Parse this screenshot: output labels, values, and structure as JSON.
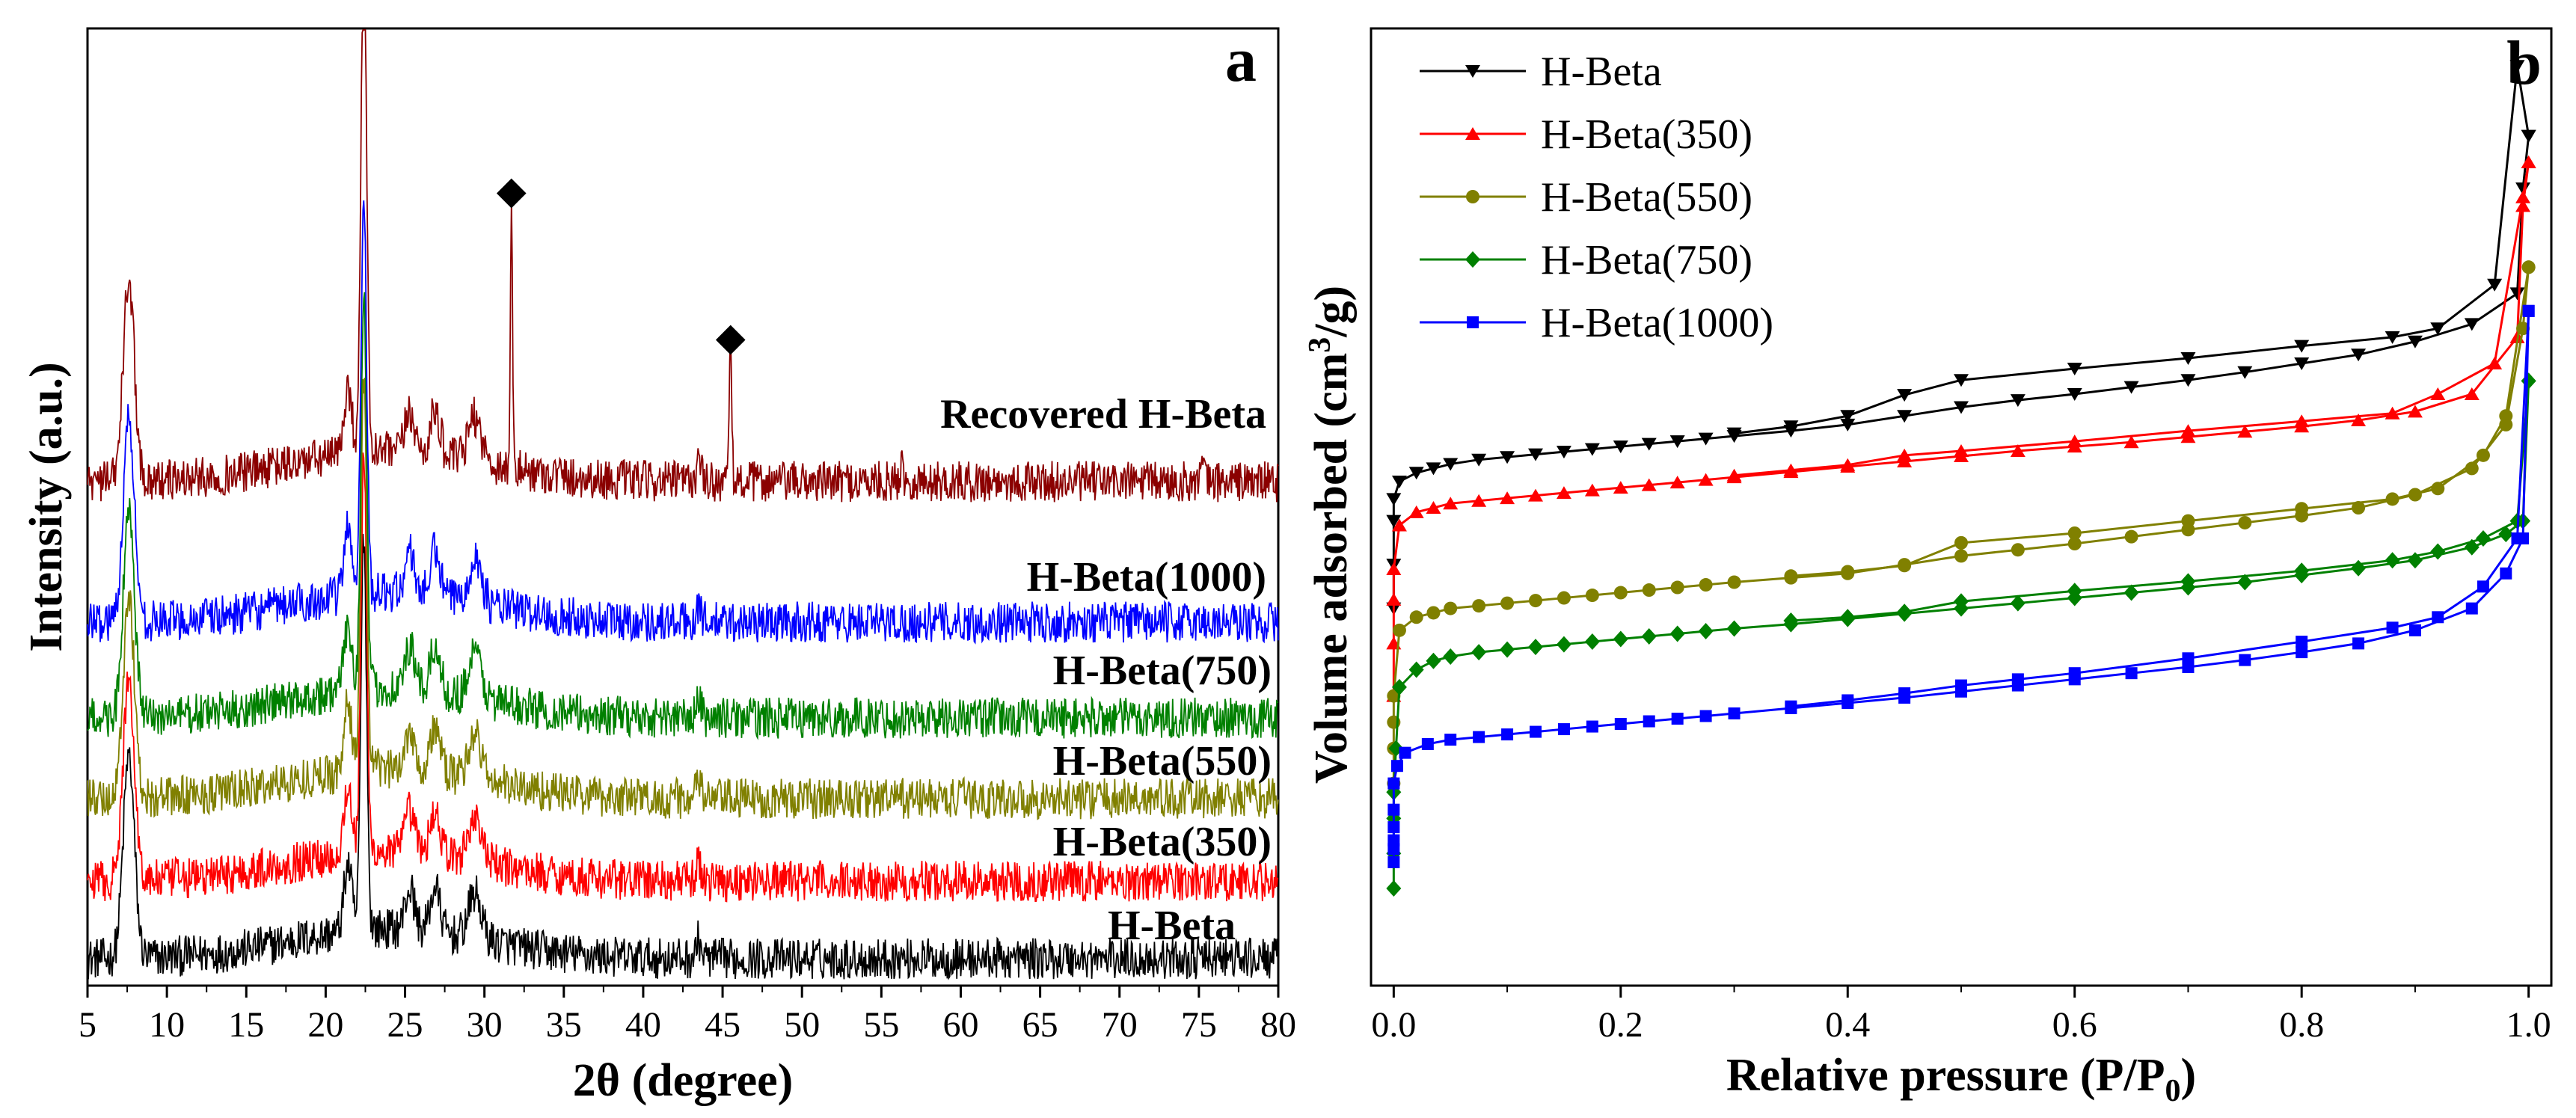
{
  "figure": {
    "panel_a_letter": "a",
    "panel_b_letter": "b"
  },
  "chart_data": [
    {
      "type": "line",
      "panel": "a",
      "title": "",
      "xlabel": "2θ (degree)",
      "ylabel": "Intensity (a.u.)",
      "xlim": [
        5,
        80
      ],
      "xticks": [
        "5",
        "10",
        "15",
        "20",
        "25",
        "30",
        "35",
        "40",
        "45",
        "50",
        "55",
        "60",
        "65",
        "70",
        "75",
        "80"
      ],
      "yticks": [],
      "peaks_deg": [
        7.6,
        21.4,
        22.4,
        25.3,
        26.9,
        29.4,
        43.5
      ],
      "marked_peaks_deg": [
        31.7,
        45.5
      ],
      "marker_symbol": "◆",
      "series": [
        {
          "name": "H-Beta",
          "color": "#000000",
          "offset": 0.0
        },
        {
          "name": "H-Beta(350)",
          "color": "#ff0000",
          "offset": 0.92
        },
        {
          "name": "H-Beta(550)",
          "color": "#808000",
          "offset": 1.95
        },
        {
          "name": "H-Beta(750)",
          "color": "#008000",
          "offset": 2.92
        },
        {
          "name": "H-Beta(1000)",
          "color": "#0000ff",
          "offset": 3.92
        },
        {
          "name": "Recovered H-Beta",
          "color": "#8b0000",
          "offset": 5.4
        }
      ],
      "labels": [
        {
          "text": "H-Beta",
          "series": "H-Beta"
        },
        {
          "text": "H-Beta(350)",
          "series": "H-Beta(350)"
        },
        {
          "text": "H-Beta(550)",
          "series": "H-Beta(550)"
        },
        {
          "text": "H-Beta(750)",
          "series": "H-Beta(750)"
        },
        {
          "text": "H-Beta(1000)",
          "series": "H-Beta(1000)"
        },
        {
          "text": "Recovered H-Beta",
          "series": "Recovered H-Beta"
        }
      ]
    },
    {
      "type": "line",
      "panel": "b",
      "title": "",
      "xlabel": "Relative pressure (P/P",
      "xlabel_sub": "0",
      "xlabel_end": ")",
      "ylabel": "Volume adsorbed (cm",
      "ylabel_sup": "3",
      "ylabel_end": "/g)",
      "xlim": [
        -0.02,
        1.02
      ],
      "xticks": [
        "0.0",
        "0.2",
        "0.4",
        "0.6",
        "0.8",
        "1.0"
      ],
      "yticks": [],
      "legend_position": "top-left",
      "series": [
        {
          "name": "H-Beta",
          "color": "#000000",
          "marker": "triangle-down",
          "x": [
            0.0,
            0.0,
            0.0,
            0.0,
            0.005,
            0.02,
            0.035,
            0.05,
            0.075,
            0.1,
            0.125,
            0.15,
            0.175,
            0.2,
            0.225,
            0.25,
            0.275,
            0.3,
            0.35,
            0.4,
            0.45,
            0.5,
            0.55,
            0.6,
            0.65,
            0.7,
            0.75,
            0.8,
            0.85,
            0.9,
            0.95,
            0.99,
            0.995,
            1.0
          ],
          "y": [
            42,
            47,
            52,
            54.5,
            56.5,
            57.5,
            58,
            58.5,
            59,
            59.3,
            59.6,
            59.9,
            60.2,
            60.5,
            60.8,
            61.1,
            61.4,
            61.7,
            62.3,
            63,
            64,
            65,
            65.8,
            66.5,
            67.3,
            68.1,
            69,
            70,
            71,
            72.5,
            74.5,
            78,
            90,
            96
          ],
          "x_desorb": [
            1.0,
            0.99,
            0.97,
            0.92,
            0.88,
            0.8,
            0.7,
            0.6,
            0.5,
            0.45,
            0.4,
            0.35,
            0.3
          ],
          "y_desorb": [
            96,
            104,
            79,
            74,
            73,
            72,
            70.6,
            69.4,
            68.1,
            66.4,
            64,
            62.8,
            62
          ]
        },
        {
          "name": "H-Beta(350)",
          "color": "#ff0000",
          "marker": "triangle-up",
          "x": [
            0.0,
            0.0,
            0.0,
            0.0,
            0.005,
            0.02,
            0.035,
            0.05,
            0.075,
            0.1,
            0.125,
            0.15,
            0.175,
            0.2,
            0.225,
            0.25,
            0.275,
            0.3,
            0.35,
            0.4,
            0.45,
            0.5,
            0.55,
            0.6,
            0.65,
            0.7,
            0.75,
            0.8,
            0.85,
            0.9,
            0.95,
            0.99,
            0.995,
            1.0
          ],
          "y": [
            32,
            38,
            43,
            46.5,
            51.5,
            53,
            53.5,
            54,
            54.3,
            54.6,
            54.9,
            55.2,
            55.5,
            55.8,
            56.1,
            56.4,
            56.7,
            57,
            57.6,
            58.2,
            58.8,
            59.4,
            60,
            60.5,
            61,
            61.6,
            62.2,
            62.8,
            63.5,
            64.5,
            66.5,
            73,
            88,
            93
          ],
          "x_desorb": [
            1.0,
            0.995,
            0.97,
            0.92,
            0.88,
            0.8,
            0.7,
            0.6,
            0.5,
            0.45,
            0.4,
            0.35,
            0.3
          ],
          "y_desorb": [
            93,
            89,
            70,
            66.5,
            64.3,
            63.4,
            62.3,
            61.1,
            60,
            59.5,
            58.4,
            57.8,
            57.2
          ]
        },
        {
          "name": "H-Beta(550)",
          "color": "#808000",
          "marker": "circle",
          "x": [
            0.0,
            0.0,
            0.0,
            0.0,
            0.005,
            0.02,
            0.035,
            0.05,
            0.075,
            0.1,
            0.125,
            0.15,
            0.175,
            0.2,
            0.225,
            0.25,
            0.275,
            0.3,
            0.35,
            0.4,
            0.45,
            0.5,
            0.55,
            0.6,
            0.65,
            0.7,
            0.75,
            0.8,
            0.85,
            0.9,
            0.95,
            0.98,
            0.995,
            1.0
          ],
          "y": [
            22,
            26,
            29,
            32,
            39.5,
            41,
            41.5,
            42,
            42.3,
            42.6,
            42.9,
            43.2,
            43.5,
            43.8,
            44.1,
            44.4,
            44.7,
            45,
            45.5,
            46,
            47,
            48,
            48.7,
            49.4,
            50.2,
            51,
            51.8,
            52.6,
            53.5,
            55,
            58,
            63,
            74,
            81
          ],
          "x_desorb": [
            1.0,
            0.98,
            0.96,
            0.92,
            0.88,
            0.8,
            0.7,
            0.6,
            0.5,
            0.45,
            0.4,
            0.35
          ],
          "y_desorb": [
            81,
            64,
            59.5,
            55.7,
            54.5,
            53.4,
            52,
            50.6,
            49.5,
            46.9,
            46.2,
            45.7
          ]
        },
        {
          "name": "H-Beta(750)",
          "color": "#008000",
          "marker": "diamond",
          "x": [
            0.0,
            0.0,
            0.0,
            0.0,
            0.002,
            0.005,
            0.02,
            0.035,
            0.05,
            0.075,
            0.1,
            0.125,
            0.15,
            0.175,
            0.2,
            0.225,
            0.25,
            0.275,
            0.3,
            0.35,
            0.4,
            0.45,
            0.5,
            0.55,
            0.6,
            0.65,
            0.7,
            0.75,
            0.8,
            0.85,
            0.9,
            0.95,
            0.98,
            0.995,
            1.0
          ],
          "y": [
            10,
            14,
            18,
            21,
            26,
            33,
            35,
            36,
            36.5,
            37,
            37.3,
            37.6,
            37.9,
            38.2,
            38.5,
            38.8,
            39.1,
            39.4,
            39.7,
            40.2,
            40.8,
            41.4,
            42,
            42.6,
            43.2,
            43.8,
            44.4,
            45,
            45.8,
            46.6,
            47.5,
            49,
            50.5,
            52,
            68
          ],
          "x_desorb": [
            1.0,
            0.99,
            0.96,
            0.92,
            0.88,
            0.8,
            0.7,
            0.6,
            0.5,
            0.45,
            0.4,
            0.35
          ],
          "y_desorb": [
            68,
            52,
            50,
            48.5,
            47.5,
            46.3,
            45.1,
            44,
            42.8,
            41.6,
            41,
            40.6
          ]
        },
        {
          "name": "H-Beta(1000)",
          "color": "#0000ff",
          "marker": "square",
          "x": [
            0.0,
            0.0,
            0.0,
            0.0,
            0.0,
            0.0,
            0.003,
            0.01,
            0.03,
            0.05,
            0.075,
            0.1,
            0.125,
            0.15,
            0.175,
            0.2,
            0.225,
            0.25,
            0.275,
            0.3,
            0.35,
            0.4,
            0.45,
            0.5,
            0.55,
            0.6,
            0.65,
            0.7,
            0.75,
            0.8,
            0.85,
            0.9,
            0.95,
            0.98,
            0.995,
            1.0
          ],
          "y": [
            13,
            14.5,
            15.5,
            17,
            19,
            22,
            24,
            25.5,
            26.5,
            27,
            27.3,
            27.6,
            27.9,
            28.2,
            28.5,
            28.8,
            29.1,
            29.4,
            29.7,
            30,
            30.6,
            31.2,
            31.8,
            32.5,
            33.2,
            33.9,
            34.6,
            35.3,
            36.1,
            37,
            38,
            39.5,
            42,
            46,
            50,
            76
          ],
          "x_desorb": [
            1.0,
            0.99,
            0.96,
            0.92,
            0.88,
            0.8,
            0.7,
            0.6,
            0.55,
            0.5,
            0.45,
            0.4,
            0.35
          ],
          "y_desorb": [
            76,
            50,
            44.5,
            41,
            39.8,
            38.2,
            36.3,
            34.6,
            33.9,
            33.2,
            32.3,
            31.5,
            30.8
          ]
        }
      ]
    }
  ]
}
